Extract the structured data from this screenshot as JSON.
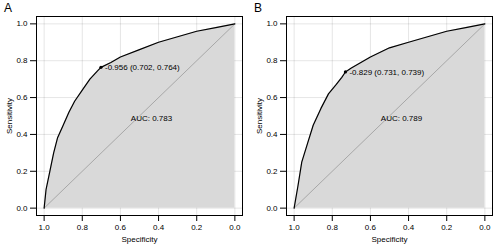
{
  "chart_data": [
    {
      "type": "line",
      "title": "A",
      "x_label": "Specificity",
      "y_label": "Sensitivity",
      "xlim": [
        1.04,
        -0.04
      ],
      "ylim": [
        -0.04,
        1.04
      ],
      "xticks": [
        {
          "value": 1,
          "label": "1.0"
        },
        {
          "value": 0.8,
          "label": "0.8"
        },
        {
          "value": 0.6,
          "label": "0.6"
        },
        {
          "value": 0.4,
          "label": "0.4"
        },
        {
          "value": 0.2,
          "label": "0.2"
        },
        {
          "value": 0,
          "label": "0.0"
        }
      ],
      "yticks": [
        {
          "value": 0,
          "label": "0.0"
        },
        {
          "value": 0.2,
          "label": "0.2"
        },
        {
          "value": 0.4,
          "label": "0.4"
        },
        {
          "value": 0.6,
          "label": "0.6"
        },
        {
          "value": 0.8,
          "label": "0.8"
        },
        {
          "value": 1,
          "label": "1.0"
        }
      ],
      "grid": true,
      "color": "#000000",
      "x": [
        1.0,
        0.99,
        0.97,
        0.95,
        0.93,
        0.9,
        0.87,
        0.84,
        0.8,
        0.76,
        0.72,
        0.702,
        0.65,
        0.6,
        0.5,
        0.4,
        0.3,
        0.2,
        0.1,
        0.0
      ],
      "values": [
        0.0,
        0.1,
        0.2,
        0.3,
        0.38,
        0.45,
        0.52,
        0.58,
        0.64,
        0.7,
        0.745,
        0.764,
        0.79,
        0.82,
        0.86,
        0.9,
        0.93,
        0.96,
        0.98,
        1.0
      ],
      "threshold": {
        "specificity": 0.702,
        "sensitivity": 0.764,
        "label": "-0.956 (0.702, 0.764)"
      },
      "auc_label": "AUC: 0.783"
    },
    {
      "type": "line",
      "title": "B",
      "x_label": "Specificity",
      "y_label": "Sensitivity",
      "xlim": [
        1.04,
        -0.04
      ],
      "ylim": [
        -0.04,
        1.04
      ],
      "xticks": [
        {
          "value": 1,
          "label": "1.0"
        },
        {
          "value": 0.8,
          "label": "0.8"
        },
        {
          "value": 0.6,
          "label": "0.6"
        },
        {
          "value": 0.4,
          "label": "0.4"
        },
        {
          "value": 0.2,
          "label": "0.2"
        },
        {
          "value": 0,
          "label": "0.0"
        }
      ],
      "yticks": [
        {
          "value": 0,
          "label": "0.0"
        },
        {
          "value": 0.2,
          "label": "0.2"
        },
        {
          "value": 0.4,
          "label": "0.4"
        },
        {
          "value": 0.6,
          "label": "0.6"
        },
        {
          "value": 0.8,
          "label": "0.8"
        },
        {
          "value": 1,
          "label": "1.0"
        }
      ],
      "grid": true,
      "color": "#000000",
      "x": [
        1.0,
        0.98,
        0.96,
        0.93,
        0.9,
        0.86,
        0.82,
        0.78,
        0.75,
        0.731,
        0.7,
        0.6,
        0.5,
        0.4,
        0.3,
        0.2,
        0.1,
        0.0
      ],
      "values": [
        0.0,
        0.12,
        0.25,
        0.35,
        0.45,
        0.54,
        0.62,
        0.67,
        0.71,
        0.739,
        0.76,
        0.82,
        0.87,
        0.9,
        0.93,
        0.96,
        0.98,
        1.0
      ],
      "threshold": {
        "specificity": 0.731,
        "sensitivity": 0.739,
        "label": "-0.829 (0.731, 0.739)"
      },
      "auc_label": "AUC: 0.789"
    }
  ]
}
